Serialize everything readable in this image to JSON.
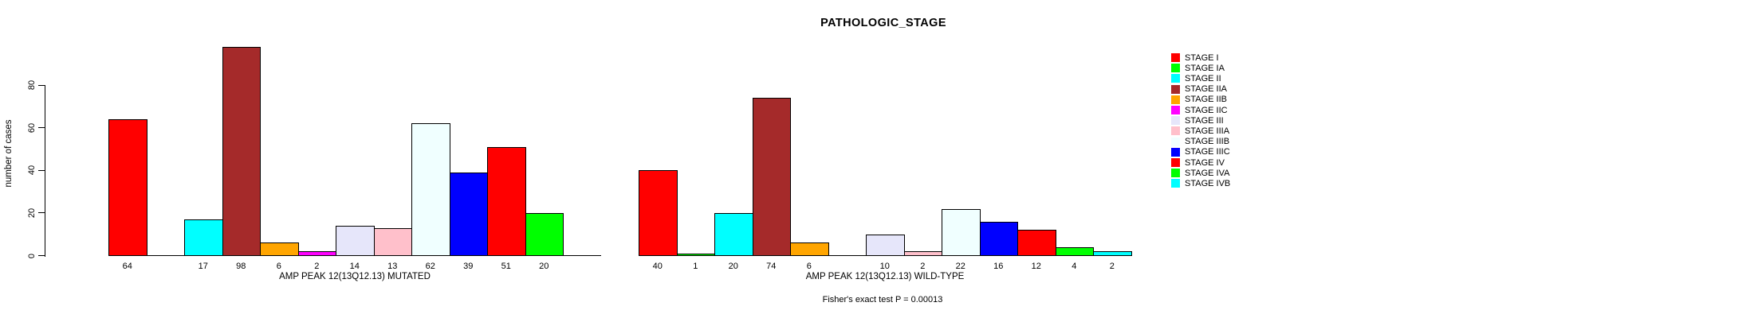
{
  "title": "PATHOLOGIC_STAGE",
  "chart_data": {
    "type": "bar",
    "title": "PATHOLOGIC_STAGE",
    "ylabel": "number of cases",
    "ylim": [
      0,
      80
    ],
    "y_ticks": [
      0,
      20,
      40,
      60,
      80
    ],
    "grid": false,
    "legend_position": "right",
    "categories": [
      "STAGE I",
      "STAGE IA",
      "STAGE II",
      "STAGE IIA",
      "STAGE IIB",
      "STAGE IIC",
      "STAGE III",
      "STAGE IIIA",
      "STAGE IIIB",
      "STAGE IIIC",
      "STAGE IV",
      "STAGE IVA",
      "STAGE IVB"
    ],
    "palette": [
      "#FF0000",
      "#00FF00",
      "#00FFFF",
      "#A52A2A",
      "#FFA500",
      "#FF00FF",
      "#E6E6FA",
      "#FFC0CB",
      "#F0FFFF",
      "#0000FF",
      "#FF0000",
      "#00FF00",
      "#00FFFF"
    ],
    "panels": [
      {
        "xlabel": "AMP PEAK 12(13Q12.13) MUTATED",
        "values": [
          64,
          0,
          17,
          98,
          6,
          2,
          14,
          13,
          62,
          39,
          51,
          20,
          0
        ],
        "bar_labels": [
          "64",
          "",
          "17",
          "98",
          "6",
          "2",
          "14",
          "13",
          "62",
          "39",
          "51",
          "20",
          ""
        ]
      },
      {
        "xlabel": "AMP PEAK 12(13Q12.13) WILD-TYPE",
        "values": [
          40,
          1,
          20,
          74,
          6,
          0,
          10,
          2,
          22,
          16,
          12,
          4,
          2
        ],
        "bar_labels": [
          "40",
          "1",
          "20",
          "74",
          "6",
          "",
          "10",
          "2",
          "22",
          "16",
          "12",
          "4",
          "2"
        ]
      }
    ],
    "annotation": "Fisher's exact test P = 0.00013"
  },
  "legend": {
    "entries": [
      {
        "label": "STAGE I",
        "color": "#FF0000"
      },
      {
        "label": "STAGE IA",
        "color": "#00FF00"
      },
      {
        "label": "STAGE II",
        "color": "#00FFFF"
      },
      {
        "label": "STAGE IIA",
        "color": "#A52A2A"
      },
      {
        "label": "STAGE IIB",
        "color": "#FFA500"
      },
      {
        "label": "STAGE IIC",
        "color": "#FF00FF"
      },
      {
        "label": "STAGE III",
        "color": "#E6E6FA"
      },
      {
        "label": "STAGE IIIA",
        "color": "#FFC0CB"
      },
      {
        "label": "STAGE IIIB",
        "color": "#F0FFFF"
      },
      {
        "label": "STAGE IIIC",
        "color": "#0000FF"
      },
      {
        "label": "STAGE IV",
        "color": "#FF0000"
      },
      {
        "label": "STAGE IVA",
        "color": "#00FF00"
      },
      {
        "label": "STAGE IVB",
        "color": "#00FFFF"
      }
    ]
  }
}
